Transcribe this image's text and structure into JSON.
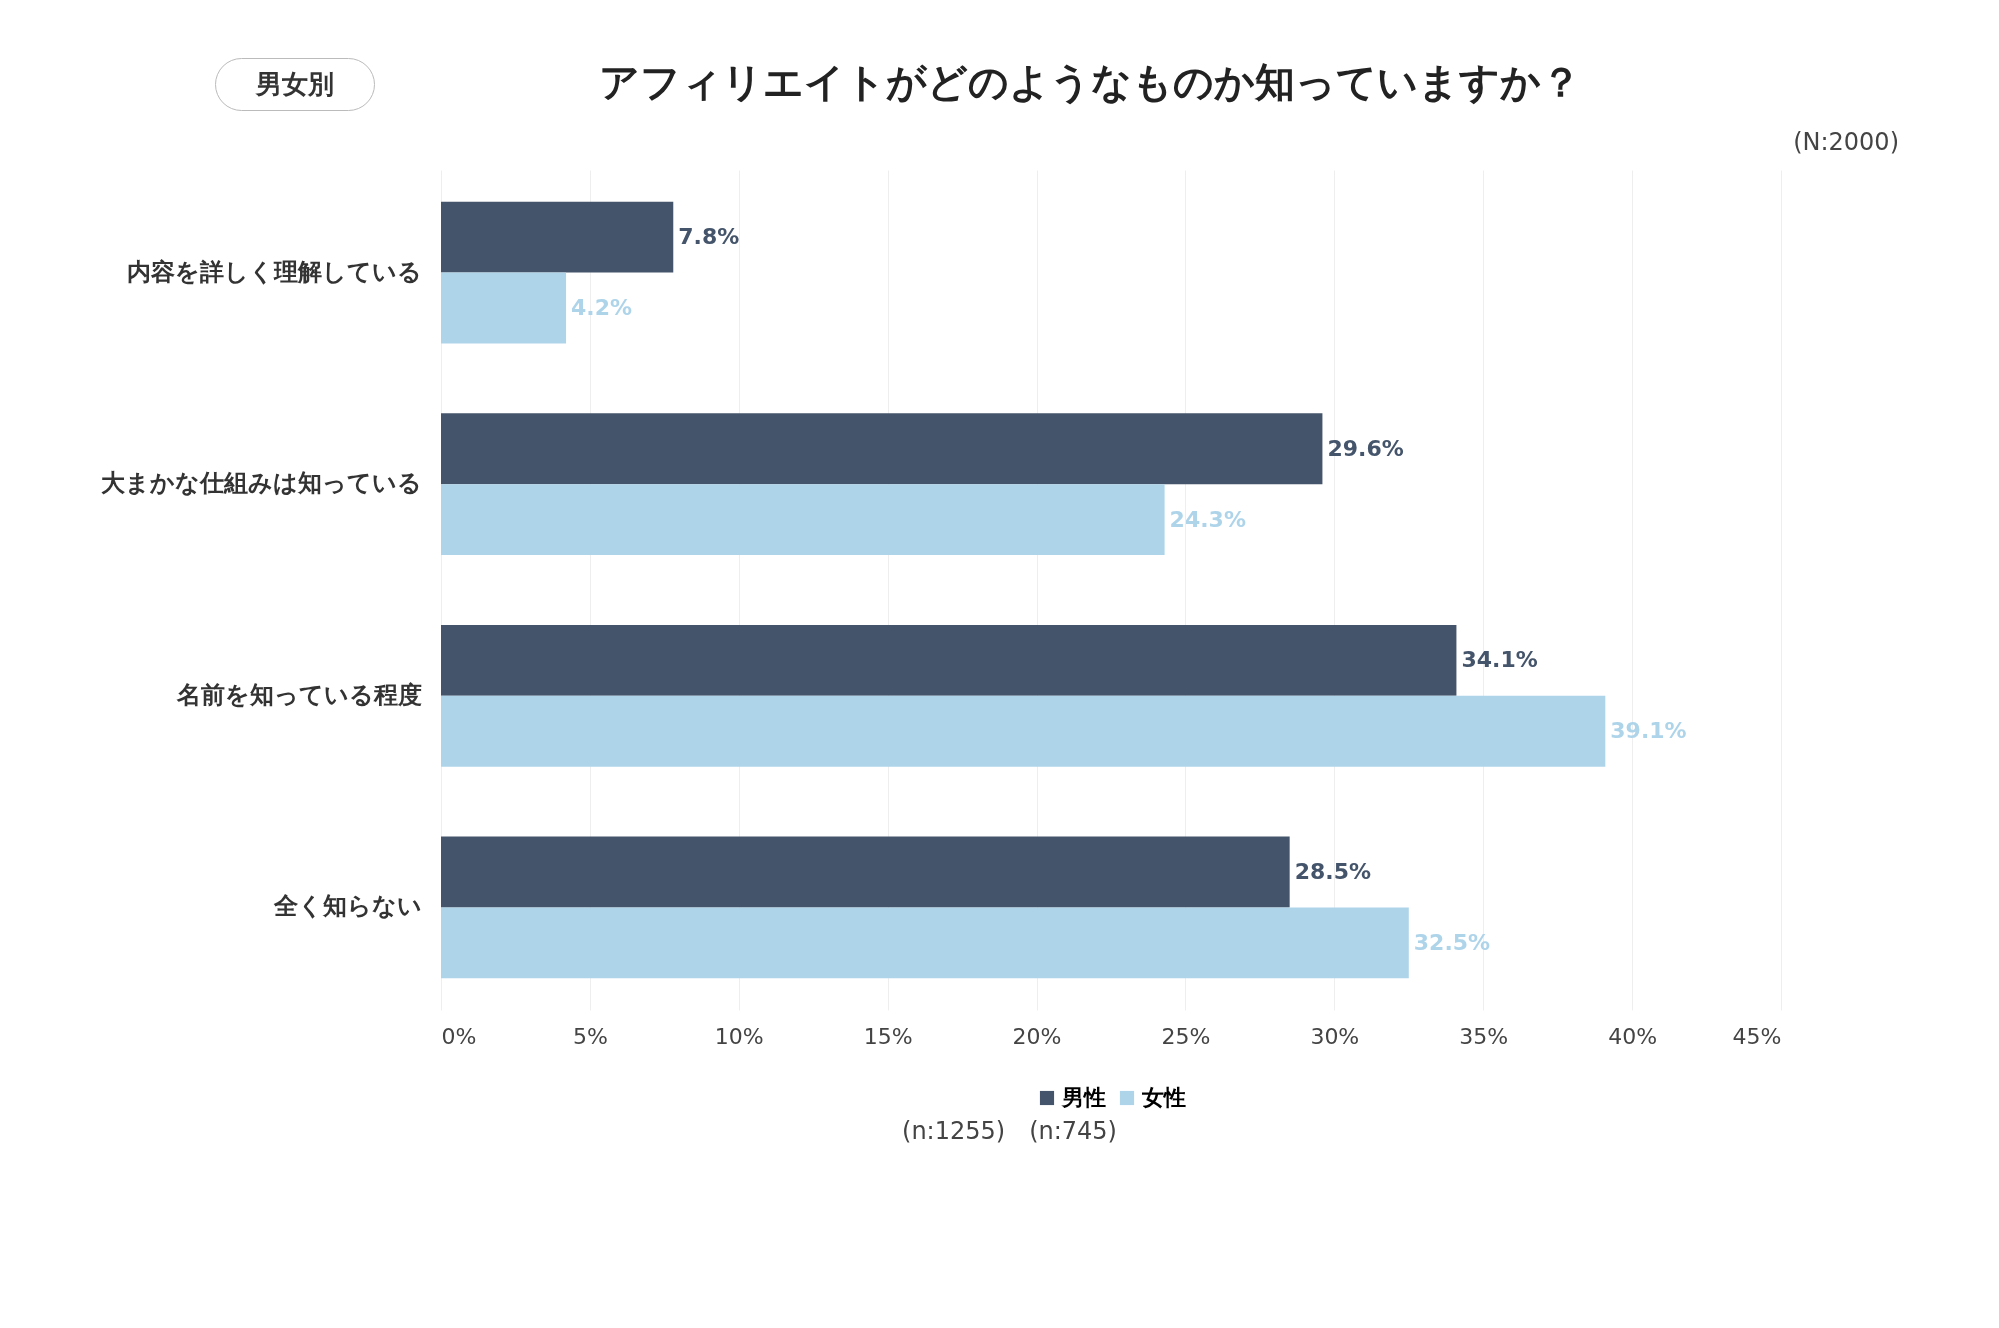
{
  "chart_data": {
    "type": "bar",
    "orientation": "horizontal",
    "title": "アフィリエイトがどのようなものか知っていますか？",
    "subtitle": "男女別",
    "annotations": [
      "(N:2000)",
      "(n:1255)",
      "(n:745)"
    ],
    "categories": [
      "内容を詳しく理解している",
      "大まかな仕組みは知っている",
      "名前を知っている程度",
      "全く知らない"
    ],
    "series": [
      {
        "name": "男性",
        "color": "#44546a",
        "values": [
          7.8,
          29.6,
          34.1,
          28.5
        ],
        "value_labels": [
          "7.8%",
          "29.6%",
          "34.1%",
          "28.5%"
        ]
      },
      {
        "name": "女性",
        "color": "#aed4ea",
        "values": [
          4.2,
          24.3,
          39.1,
          32.5
        ],
        "value_labels": [
          "4.2%",
          "24.3%",
          "39.1%",
          "32.5%"
        ]
      }
    ],
    "xlim": [
      0,
      45
    ],
    "xticks": [
      {
        "value": 0,
        "label": "0%"
      },
      {
        "value": 5,
        "label": "5%"
      },
      {
        "value": 10,
        "label": "10%"
      },
      {
        "value": 15,
        "label": "15%"
      },
      {
        "value": 20,
        "label": "20%"
      },
      {
        "value": 25,
        "label": "25%"
      },
      {
        "value": 30,
        "label": "30%"
      },
      {
        "value": 35,
        "label": "35%"
      },
      {
        "value": 40,
        "label": "40%"
      },
      {
        "value": 45,
        "label": "45%"
      }
    ],
    "grid": "x",
    "legend": "bottom"
  }
}
